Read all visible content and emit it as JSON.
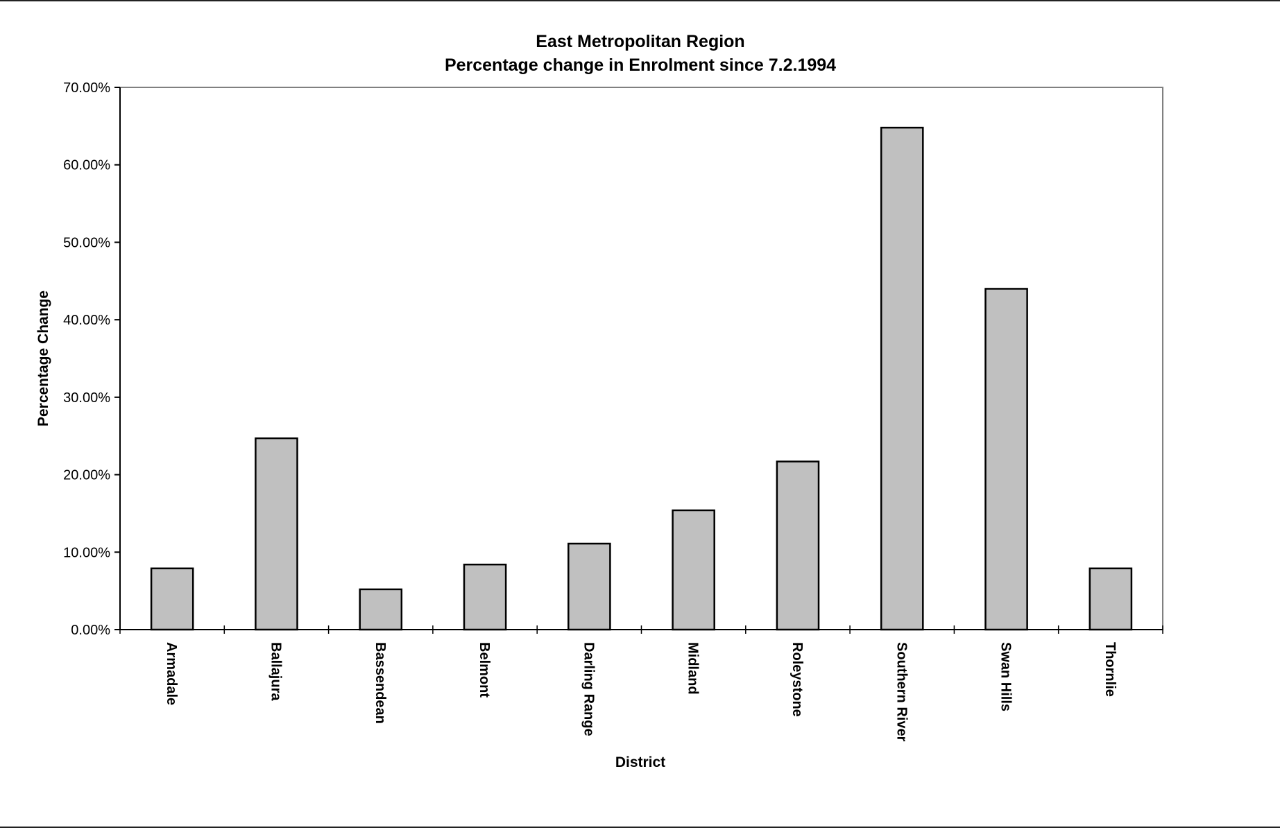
{
  "chart_data": {
    "type": "bar",
    "title": "East Metropolitan Region",
    "subtitle": "Percentage change in Enrolment since 7.2.1994",
    "xlabel": "District",
    "ylabel": "Percentage Change",
    "categories": [
      "Armadale",
      "Ballajura",
      "Bassendean",
      "Belmont",
      "Darling Range",
      "Midland",
      "Roleystone",
      "Southern River",
      "Swan Hills",
      "Thornlie"
    ],
    "values": [
      7.9,
      24.7,
      5.2,
      8.4,
      11.1,
      15.4,
      21.7,
      64.8,
      44.0,
      7.9
    ],
    "ylim": [
      0,
      70
    ],
    "yticks": [
      "0.00%",
      "10.00%",
      "20.00%",
      "30.00%",
      "40.00%",
      "50.00%",
      "60.00%",
      "70.00%"
    ],
    "grid": false,
    "legend": "none",
    "bar_color": "#c0c0c0",
    "edge_color": "#000000",
    "frame_color": "#808080"
  }
}
